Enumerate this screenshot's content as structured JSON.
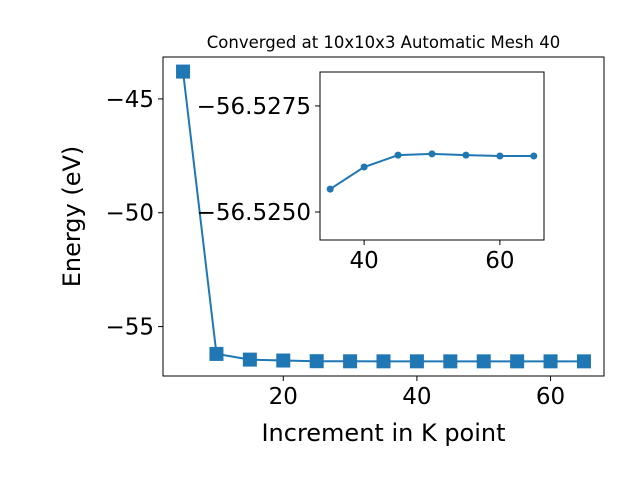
{
  "chart_data": [
    {
      "type": "line",
      "title": "Converged at 10x10x3 Automatic Mesh 40",
      "x_label": "Increment in K point",
      "y_label": "Energy (eV)",
      "x": [
        5,
        10,
        15,
        20,
        25,
        30,
        35,
        40,
        45,
        50,
        55,
        60,
        65
      ],
      "series": [
        {
          "color": "#1f77b4",
          "marker": "square",
          "values": [
            -43.8,
            -56.2,
            -56.45,
            -56.49,
            -56.52,
            -56.524,
            -56.5255,
            -56.5261,
            -56.5263,
            -56.5264,
            -56.5263,
            -56.5263,
            -56.5263
          ]
        }
      ],
      "xlim": [
        2,
        68
      ],
      "ylim": [
        -57.17,
        -43.16
      ],
      "xticks": [
        20,
        40,
        60
      ],
      "yticks": [
        {
          "value": -55,
          "label": "−55"
        },
        {
          "value": -50,
          "label": "−50"
        },
        {
          "value": -45,
          "label": "−45"
        }
      ]
    },
    {
      "type": "line",
      "x": [
        35,
        40,
        45,
        50,
        55,
        60,
        65
      ],
      "series": [
        {
          "color": "#1f77b4",
          "marker": "circle",
          "values": [
            -56.52554,
            -56.52606,
            -56.52634,
            -56.52637,
            -56.52634,
            -56.52632,
            -56.52632
          ]
        }
      ],
      "xlim": [
        33.5,
        66.5
      ],
      "ylim": [
        -56.52434,
        -56.5283
      ],
      "xticks": [
        40,
        60
      ],
      "yticks": [
        {
          "value": -56.525,
          "label": "−56.5250"
        },
        {
          "value": -56.5275,
          "label": "−56.5275"
        }
      ]
    }
  ]
}
